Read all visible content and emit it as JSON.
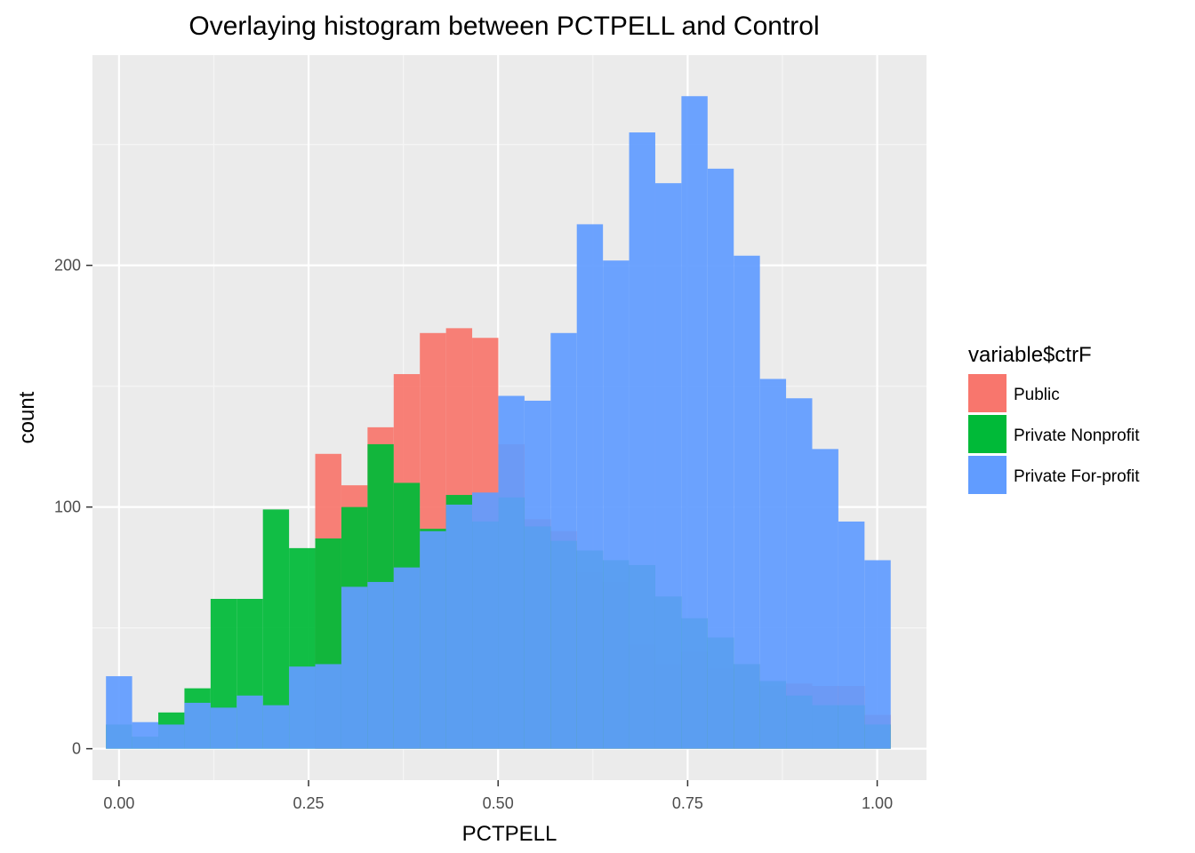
{
  "chart_data": {
    "type": "histogram",
    "title": "Overlaying histogram between PCTPELL and Control",
    "xlabel": "PCTPELL",
    "ylabel": "count",
    "xlim": [
      -0.035,
      1.065
    ],
    "ylim": [
      -13,
      287
    ],
    "x_ticks": [
      0.0,
      0.25,
      0.5,
      0.75,
      1.0
    ],
    "x_tick_labels": [
      "0.00",
      "0.25",
      "0.50",
      "0.75",
      "1.00"
    ],
    "y_ticks": [
      0,
      100,
      200
    ],
    "y_tick_labels": [
      "0",
      "100",
      "200"
    ],
    "grid": true,
    "bin_start": -0.0172,
    "bin_width": 0.0345,
    "legend": {
      "title": "variable$ctrF",
      "position": "right"
    },
    "series": [
      {
        "name": "Public",
        "color": "#F8766D",
        "values": [
          0,
          0,
          0,
          0,
          0,
          0,
          0,
          0,
          122,
          109,
          133,
          155,
          172,
          174,
          170,
          126,
          95,
          90,
          73,
          69,
          43,
          35,
          40,
          33,
          35,
          26,
          27,
          26,
          26,
          14
        ]
      },
      {
        "name": "Private Nonprofit",
        "color": "#00BA38",
        "values": [
          10,
          5,
          15,
          25,
          62,
          62,
          99,
          83,
          87,
          100,
          126,
          110,
          91,
          105,
          94,
          104,
          92,
          86,
          82,
          78,
          76,
          63,
          54,
          46,
          35,
          28,
          22,
          18,
          18,
          10
        ]
      },
      {
        "name": "Private For-profit",
        "color": "#619CFF",
        "values": [
          30,
          11,
          10,
          19,
          17,
          22,
          18,
          34,
          35,
          67,
          69,
          75,
          90,
          101,
          106,
          146,
          144,
          172,
          217,
          202,
          255,
          234,
          270,
          240,
          204,
          153,
          145,
          124,
          94,
          78
        ]
      }
    ]
  }
}
